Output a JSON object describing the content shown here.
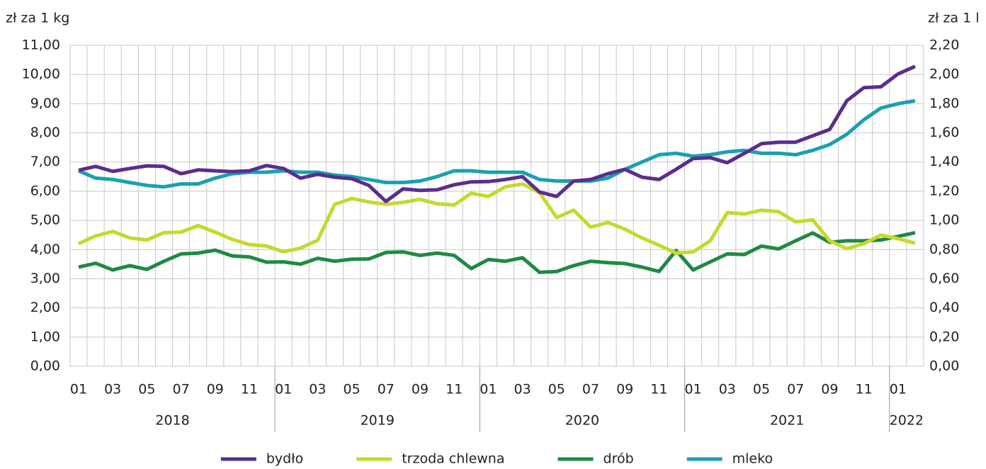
{
  "chart_data": {
    "type": "line",
    "y_axis_label": "zł za 1 kg",
    "y2_axis_label": "zł za 1 l",
    "categories": [
      "01",
      null,
      "03",
      null,
      "05",
      null,
      "07",
      null,
      "09",
      null,
      "11",
      null,
      "01",
      null,
      "03",
      null,
      "05",
      null,
      "07",
      null,
      "09",
      null,
      "11",
      null,
      "01",
      null,
      "03",
      null,
      "05",
      null,
      "07",
      null,
      "09",
      null,
      "11",
      null,
      "01",
      null,
      "03",
      null,
      "05",
      null,
      "07",
      null,
      "09",
      null,
      "11",
      null,
      "01",
      null
    ],
    "years": [
      "2018",
      "2019",
      "2020",
      "2021",
      "2022"
    ],
    "ylim": [
      0,
      11
    ],
    "yticks": [
      {
        "value": 0,
        "label": "0,00"
      },
      {
        "value": 1,
        "label": "1,00"
      },
      {
        "value": 2,
        "label": "2,00"
      },
      {
        "value": 3,
        "label": "3,00"
      },
      {
        "value": 4,
        "label": "4,00"
      },
      {
        "value": 5,
        "label": "5,00"
      },
      {
        "value": 6,
        "label": "6,00"
      },
      {
        "value": 7,
        "label": "7,00"
      },
      {
        "value": 8,
        "label": "8,00"
      },
      {
        "value": 9,
        "label": "9,00"
      },
      {
        "value": 10,
        "label": "10,00"
      },
      {
        "value": 11,
        "label": "11,00"
      }
    ],
    "y2lim": [
      0,
      2.2
    ],
    "y2ticks": [
      {
        "value": 0,
        "label": "0,00"
      },
      {
        "value": 0.2,
        "label": "0,20"
      },
      {
        "value": 0.4,
        "label": "0,40"
      },
      {
        "value": 0.6,
        "label": "0,60"
      },
      {
        "value": 0.8,
        "label": "0,80"
      },
      {
        "value": 1,
        "label": "1,00"
      },
      {
        "value": 1.2,
        "label": "1,20"
      },
      {
        "value": 1.4,
        "label": "1,40"
      },
      {
        "value": 1.6,
        "label": "1,60"
      },
      {
        "value": 1.8,
        "label": "1,80"
      },
      {
        "value": 2,
        "label": "2,00"
      },
      {
        "value": 2.2,
        "label": "2,20"
      }
    ],
    "grid": true,
    "legend": "bottom",
    "series": [
      {
        "name": "bydło",
        "color": "#5b2d8e",
        "values": [
          6.72,
          6.85,
          6.68,
          6.78,
          6.87,
          6.85,
          6.6,
          6.73,
          6.7,
          6.67,
          6.7,
          6.88,
          6.78,
          6.45,
          6.58,
          6.48,
          6.43,
          6.2,
          5.65,
          6.08,
          6.03,
          6.05,
          6.22,
          6.32,
          6.33,
          6.4,
          6.5,
          5.97,
          5.82,
          6.35,
          6.4,
          6.6,
          6.75,
          6.48,
          6.4,
          6.75,
          7.12,
          7.15,
          6.98,
          7.3,
          7.63,
          7.68,
          7.68,
          7.9,
          8.12,
          9.1,
          9.55,
          9.58,
          10.02,
          10.28
        ]
      },
      {
        "name": "trzoda chlewna",
        "color": "#c5d92d",
        "values": [
          4.2,
          4.47,
          4.62,
          4.4,
          4.33,
          4.58,
          4.6,
          4.82,
          4.6,
          4.35,
          4.17,
          4.12,
          3.93,
          4.05,
          4.32,
          5.55,
          5.75,
          5.63,
          5.55,
          5.62,
          5.72,
          5.57,
          5.53,
          5.93,
          5.82,
          6.15,
          6.25,
          5.95,
          5.1,
          5.35,
          4.77,
          4.93,
          4.7,
          4.4,
          4.15,
          3.88,
          3.92,
          4.3,
          5.27,
          5.22,
          5.35,
          5.3,
          4.95,
          5.02,
          4.3,
          4.03,
          4.2,
          4.5,
          4.37,
          4.22
        ]
      },
      {
        "name": "drób",
        "color": "#1e8a44",
        "values": [
          3.4,
          3.53,
          3.3,
          3.45,
          3.32,
          3.6,
          3.85,
          3.88,
          3.98,
          3.78,
          3.75,
          3.57,
          3.58,
          3.5,
          3.7,
          3.6,
          3.67,
          3.68,
          3.9,
          3.92,
          3.8,
          3.88,
          3.8,
          3.35,
          3.66,
          3.6,
          3.72,
          3.22,
          3.25,
          3.45,
          3.6,
          3.55,
          3.52,
          3.4,
          3.25,
          3.97,
          3.3,
          3.58,
          3.85,
          3.83,
          4.12,
          4.02,
          4.3,
          4.57,
          4.25,
          4.3,
          4.3,
          4.33,
          4.45,
          4.58
        ]
      },
      {
        "name": "mleko",
        "color": "#1aa0b0",
        "axis": "y2",
        "values": [
          1.34,
          1.29,
          1.28,
          1.26,
          1.24,
          1.23,
          1.25,
          1.25,
          1.29,
          1.32,
          1.33,
          1.33,
          1.34,
          1.33,
          1.33,
          1.31,
          1.3,
          1.28,
          1.26,
          1.26,
          1.27,
          1.3,
          1.34,
          1.34,
          1.33,
          1.33,
          1.33,
          1.28,
          1.27,
          1.27,
          1.27,
          1.29,
          1.35,
          1.4,
          1.45,
          1.46,
          1.44,
          1.45,
          1.47,
          1.48,
          1.46,
          1.46,
          1.45,
          1.48,
          1.52,
          1.59,
          1.69,
          1.77,
          1.8,
          1.82
        ]
      }
    ]
  }
}
